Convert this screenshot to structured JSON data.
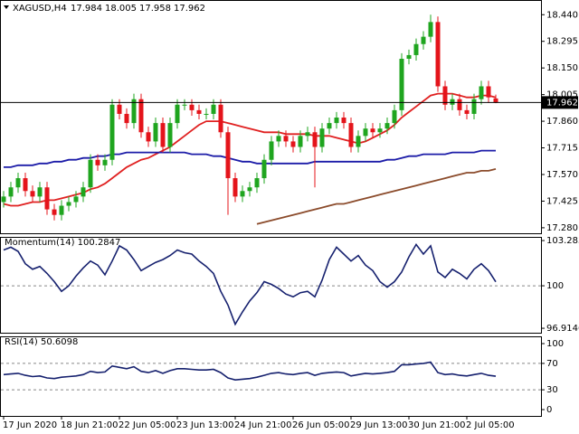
{
  "chart_data": [
    {
      "type": "candlestick",
      "title": "XAGUSD,H4",
      "header_values": [
        17.984,
        18.005,
        17.958,
        17.962
      ],
      "categories": [
        "17 Jun 2020",
        null,
        null,
        null,
        null,
        null,
        null,
        null,
        "18 Jun 21:00",
        null,
        null,
        null,
        null,
        null,
        null,
        null,
        "22 Jun 05:00",
        null,
        null,
        null,
        null,
        null,
        null,
        null,
        "23 Jun 13:00",
        null,
        null,
        null,
        null,
        null,
        null,
        null,
        "24 Jun 21:00",
        null,
        null,
        null,
        null,
        null,
        null,
        null,
        "26 Jun 05:00",
        null,
        null,
        null,
        null,
        null,
        null,
        null,
        "29 Jun 13:00",
        null,
        null,
        null,
        null,
        null,
        null,
        null,
        "30 Jun 21:00",
        null,
        null,
        null,
        null,
        null,
        null,
        null,
        "2 Jul 05:00",
        null,
        null,
        null,
        null
      ],
      "open": [
        17.42,
        17.45,
        17.5,
        17.55,
        17.48,
        17.45,
        17.5,
        17.38,
        17.35,
        17.4,
        17.42,
        17.45,
        17.5,
        17.65,
        17.62,
        17.65,
        17.95,
        17.9,
        17.85,
        17.98,
        17.8,
        17.75,
        17.85,
        17.72,
        17.85,
        17.95,
        17.95,
        17.92,
        17.9,
        17.9,
        17.95,
        17.8,
        17.55,
        17.45,
        17.48,
        17.5,
        17.55,
        17.65,
        17.75,
        17.78,
        17.75,
        17.72,
        17.78,
        17.8,
        17.72,
        17.82,
        17.85,
        17.88,
        17.85,
        17.72,
        17.78,
        17.82,
        17.8,
        17.82,
        17.85,
        17.92,
        18.2,
        18.22,
        18.28,
        18.32,
        18.4,
        18.05,
        17.95,
        17.98,
        17.92,
        17.9,
        17.98,
        18.05,
        17.984
      ],
      "high": [
        17.48,
        17.53,
        17.58,
        17.58,
        17.51,
        17.53,
        17.53,
        17.41,
        17.43,
        17.45,
        17.48,
        17.53,
        17.68,
        17.68,
        17.68,
        17.98,
        17.98,
        17.93,
        18.01,
        18.01,
        17.83,
        17.88,
        17.88,
        17.88,
        17.98,
        17.98,
        17.98,
        17.95,
        17.93,
        17.98,
        17.98,
        17.83,
        17.58,
        17.51,
        17.53,
        17.58,
        17.68,
        17.78,
        17.81,
        17.81,
        17.78,
        17.81,
        17.83,
        17.83,
        17.85,
        17.88,
        17.91,
        17.91,
        17.88,
        17.81,
        17.85,
        17.85,
        17.85,
        17.88,
        17.95,
        18.23,
        18.25,
        18.31,
        18.35,
        18.44,
        18.43,
        18.08,
        18.01,
        18.01,
        17.95,
        18.01,
        18.08,
        18.08,
        18.005
      ],
      "low": [
        17.39,
        17.42,
        17.47,
        17.45,
        17.42,
        17.42,
        17.35,
        17.32,
        17.32,
        17.37,
        17.39,
        17.42,
        17.47,
        17.59,
        17.59,
        17.62,
        17.87,
        17.82,
        17.82,
        17.77,
        17.72,
        17.72,
        17.69,
        17.69,
        17.82,
        17.92,
        17.89,
        17.87,
        17.87,
        17.87,
        17.77,
        17.35,
        17.42,
        17.42,
        17.45,
        17.47,
        17.52,
        17.62,
        17.72,
        17.72,
        17.69,
        17.69,
        17.75,
        17.5,
        17.69,
        17.79,
        17.82,
        17.82,
        17.69,
        17.69,
        17.75,
        17.77,
        17.77,
        17.79,
        17.82,
        17.89,
        18.17,
        18.19,
        18.25,
        18.29,
        18.02,
        17.92,
        17.92,
        17.89,
        17.87,
        17.87,
        17.95,
        17.96,
        17.958
      ],
      "close": [
        17.45,
        17.5,
        17.55,
        17.48,
        17.45,
        17.5,
        17.38,
        17.35,
        17.4,
        17.42,
        17.45,
        17.5,
        17.65,
        17.62,
        17.65,
        17.95,
        17.9,
        17.85,
        17.98,
        17.8,
        17.75,
        17.85,
        17.72,
        17.85,
        17.95,
        17.95,
        17.92,
        17.9,
        17.9,
        17.95,
        17.8,
        17.55,
        17.45,
        17.48,
        17.5,
        17.55,
        17.65,
        17.75,
        17.78,
        17.75,
        17.72,
        17.78,
        17.8,
        17.72,
        17.82,
        17.85,
        17.88,
        17.85,
        17.72,
        17.78,
        17.82,
        17.8,
        17.82,
        17.85,
        17.92,
        18.2,
        18.22,
        18.28,
        18.32,
        18.4,
        18.05,
        17.95,
        17.98,
        17.92,
        17.9,
        17.98,
        18.05,
        17.99,
        17.962
      ],
      "up_color": "#1fa51f",
      "down_color": "#e4141b",
      "series": [
        {
          "color": "#e02020",
          "values": [
            17.41,
            17.4,
            17.4,
            17.41,
            17.42,
            17.42,
            17.43,
            17.43,
            17.44,
            17.45,
            17.46,
            17.47,
            17.49,
            17.5,
            17.52,
            17.55,
            17.58,
            17.61,
            17.63,
            17.65,
            17.66,
            17.68,
            17.7,
            17.72,
            17.75,
            17.78,
            17.81,
            17.84,
            17.86,
            17.86,
            17.86,
            17.85,
            17.84,
            17.83,
            17.82,
            17.81,
            17.8,
            17.8,
            17.8,
            17.79,
            17.79,
            17.79,
            17.79,
            17.78,
            17.78,
            17.78,
            17.77,
            17.76,
            17.75,
            17.74,
            17.75,
            17.77,
            17.79,
            17.81,
            17.84,
            17.88,
            17.91,
            17.94,
            17.97,
            18.0,
            18.01,
            18.01,
            18.01,
            18.0,
            17.99,
            17.99,
            18.0,
            18.0,
            17.99
          ]
        },
        {
          "color": "#1c1ca8",
          "values": [
            17.61,
            17.61,
            17.62,
            17.62,
            17.62,
            17.63,
            17.63,
            17.64,
            17.64,
            17.65,
            17.65,
            17.66,
            17.66,
            17.67,
            17.67,
            17.68,
            17.68,
            17.69,
            17.69,
            17.69,
            17.69,
            17.69,
            17.69,
            17.69,
            17.69,
            17.69,
            17.68,
            17.68,
            17.68,
            17.67,
            17.67,
            17.66,
            17.65,
            17.64,
            17.64,
            17.63,
            17.63,
            17.63,
            17.63,
            17.63,
            17.63,
            17.63,
            17.63,
            17.64,
            17.64,
            17.64,
            17.64,
            17.64,
            17.64,
            17.64,
            17.64,
            17.64,
            17.64,
            17.65,
            17.65,
            17.66,
            17.67,
            17.67,
            17.68,
            17.68,
            17.68,
            17.68,
            17.69,
            17.69,
            17.69,
            17.69,
            17.7,
            17.7,
            17.7
          ]
        },
        {
          "color": "#8b4b2b",
          "values": [
            null,
            null,
            null,
            null,
            null,
            null,
            null,
            null,
            null,
            null,
            null,
            null,
            null,
            null,
            null,
            null,
            null,
            null,
            null,
            null,
            null,
            null,
            null,
            null,
            null,
            null,
            null,
            null,
            null,
            null,
            null,
            null,
            null,
            null,
            null,
            17.3,
            17.31,
            17.32,
            17.33,
            17.34,
            17.35,
            17.36,
            17.37,
            17.38,
            17.39,
            17.4,
            17.41,
            17.41,
            17.42,
            17.43,
            17.44,
            17.45,
            17.46,
            17.47,
            17.48,
            17.49,
            17.5,
            17.51,
            17.52,
            17.53,
            17.54,
            17.55,
            17.56,
            17.57,
            17.58,
            17.58,
            17.59,
            17.59,
            17.6
          ]
        }
      ],
      "last_price": {
        "value": 17.962,
        "label": "17.962"
      },
      "ylim": [
        17.25,
        18.52
      ],
      "yticks": [
        {
          "value": 18.44,
          "label": "18.440"
        },
        18.295,
        {
          "value": 18.15,
          "label": "18.150"
        },
        18.005,
        {
          "value": 17.86,
          "label": "17.860"
        },
        17.715,
        {
          "value": 17.57,
          "label": "17.570"
        },
        17.425,
        {
          "value": 17.28,
          "label": "17.280"
        }
      ]
    },
    {
      "type": "line",
      "title": "Momentum(14) 100.2847",
      "color": "#15206e",
      "values": [
        102.6,
        102.8,
        102.5,
        101.6,
        101.2,
        101.4,
        100.9,
        100.3,
        99.6,
        100.0,
        100.7,
        101.3,
        101.8,
        101.5,
        100.8,
        101.8,
        102.9,
        102.6,
        101.9,
        101.1,
        101.4,
        101.7,
        101.9,
        102.2,
        102.6,
        102.4,
        102.3,
        101.8,
        101.4,
        100.9,
        99.6,
        98.6,
        97.2,
        98.1,
        98.9,
        99.5,
        100.3,
        100.1,
        99.8,
        99.4,
        99.2,
        99.5,
        99.6,
        99.2,
        100.4,
        101.9,
        102.8,
        102.3,
        101.8,
        102.2,
        101.5,
        101.1,
        100.3,
        99.9,
        100.3,
        101.0,
        102.1,
        103.0,
        102.3,
        102.9,
        101.0,
        100.6,
        101.2,
        100.9,
        100.5,
        101.2,
        101.6,
        101.1,
        100.2847
      ],
      "ylim": [
        96.59,
        103.55
      ],
      "yticks": [
        103.2838,
        100,
        96.9146
      ],
      "levels": [
        100
      ]
    },
    {
      "type": "line",
      "title": "RSI(14) 50.6098",
      "color": "#15206e",
      "values": [
        53,
        54,
        55,
        52,
        50,
        51,
        48,
        47,
        49,
        50,
        51,
        53,
        58,
        56,
        57,
        66,
        64,
        62,
        65,
        58,
        56,
        59,
        55,
        59,
        62,
        62,
        61,
        60,
        60,
        61,
        56,
        48,
        45,
        46,
        47,
        49,
        52,
        55,
        56,
        54,
        53,
        55,
        56,
        52,
        55,
        56,
        57,
        56,
        51,
        53,
        55,
        54,
        55,
        56,
        58,
        68,
        68,
        69,
        70,
        72,
        56,
        53,
        54,
        52,
        51,
        53,
        55,
        52,
        50.6098
      ],
      "ylim": [
        -9.6,
        111
      ],
      "yticks": [
        100,
        70,
        30,
        0
      ],
      "levels": [
        70,
        30
      ]
    }
  ]
}
